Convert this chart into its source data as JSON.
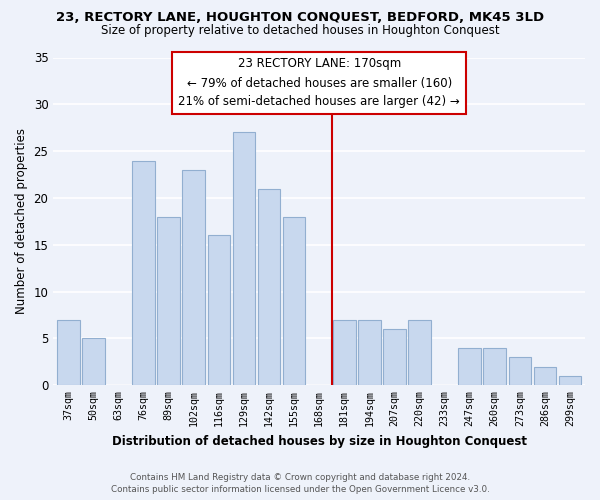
{
  "title1": "23, RECTORY LANE, HOUGHTON CONQUEST, BEDFORD, MK45 3LD",
  "title2": "Size of property relative to detached houses in Houghton Conquest",
  "xlabel": "Distribution of detached houses by size in Houghton Conquest",
  "ylabel": "Number of detached properties",
  "bar_labels": [
    "37sqm",
    "50sqm",
    "63sqm",
    "76sqm",
    "89sqm",
    "102sqm",
    "116sqm",
    "129sqm",
    "142sqm",
    "155sqm",
    "168sqm",
    "181sqm",
    "194sqm",
    "207sqm",
    "220sqm",
    "233sqm",
    "247sqm",
    "260sqm",
    "273sqm",
    "286sqm",
    "299sqm"
  ],
  "bar_values": [
    7,
    5,
    0,
    24,
    18,
    23,
    16,
    27,
    21,
    18,
    0,
    7,
    7,
    6,
    7,
    0,
    4,
    4,
    3,
    2,
    1
  ],
  "bar_color": "#c8d8ee",
  "bar_edge_color": "#92afd0",
  "vline_x_index": 10,
  "vline_color": "#cc0000",
  "annotation_title": "23 RECTORY LANE: 170sqm",
  "annotation_line1": "← 79% of detached houses are smaller (160)",
  "annotation_line2": "21% of semi-detached houses are larger (42) →",
  "annotation_box_color": "#ffffff",
  "annotation_box_edge": "#cc0000",
  "ylim": [
    0,
    35
  ],
  "yticks": [
    0,
    5,
    10,
    15,
    20,
    25,
    30,
    35
  ],
  "footer1": "Contains HM Land Registry data © Crown copyright and database right 2024.",
  "footer2": "Contains public sector information licensed under the Open Government Licence v3.0.",
  "bg_color": "#eef2fa",
  "grid_color": "#ffffff"
}
